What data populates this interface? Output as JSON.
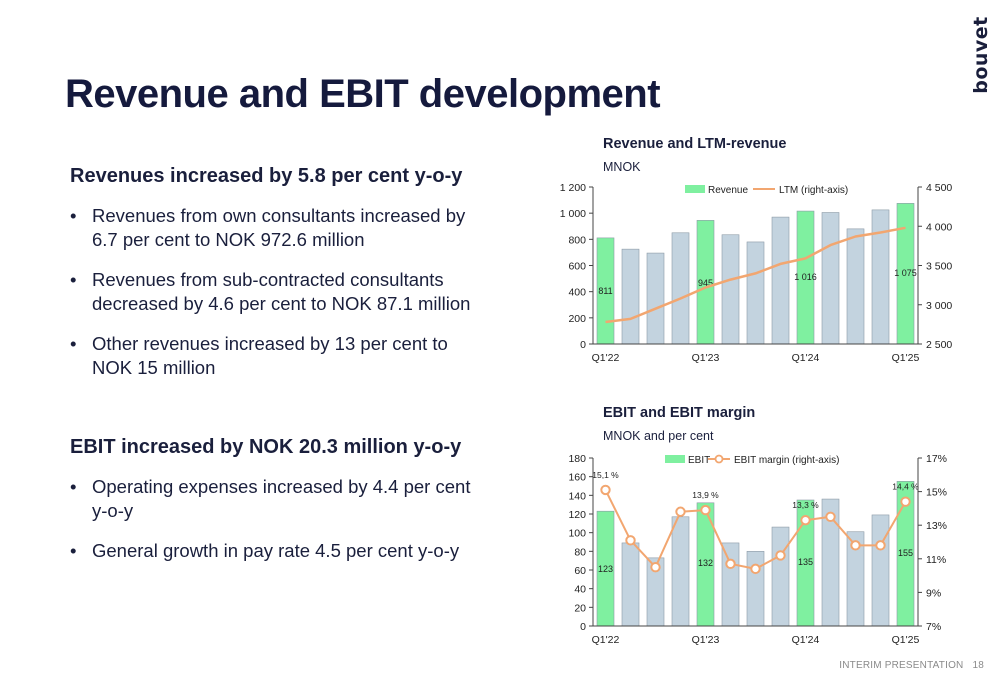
{
  "brand": {
    "logo_text": "bouvet"
  },
  "title": "Revenue and EBIT development",
  "revenue_section": {
    "heading": "Revenues increased by 5.8 per cent y-o-y",
    "bullets": [
      "Revenues from own consultants increased by 6.7 per cent to NOK 972.6 million",
      "Revenues from sub-contracted consultants decreased by 4.6 per cent to NOK 87.1 million",
      "Other revenues increased by 13 per cent to NOK 15 million"
    ]
  },
  "ebit_section": {
    "heading": "EBIT increased by NOK 20.3 million y-o-y",
    "bullets": [
      "Operating expenses increased by 4.4 per cent y-o-y",
      "General growth in pay rate 4.5 per cent y-o-y"
    ]
  },
  "footer": {
    "label": "INTERIM PRESENTATION",
    "page": "18"
  },
  "colors": {
    "highlight_bar": "#7ff0a0",
    "regular_bar": "#c3d3df",
    "line": "#f2a670",
    "text": "#1a1f3c"
  },
  "chart_data": [
    {
      "type": "bar",
      "title": "Revenue and LTM-revenue",
      "subtitle": "MNOK",
      "categories": [
        "Q1'22",
        "",
        "",
        "",
        "Q1'23",
        "",
        "",
        "",
        "Q1'24",
        "",
        "",
        "",
        "Q1'25"
      ],
      "highlight_indices": [
        0,
        4,
        8,
        12
      ],
      "legend_position": "top",
      "series": [
        {
          "name": "Revenue",
          "axis": "left",
          "values": [
            811,
            725,
            695,
            850,
            945,
            835,
            780,
            970,
            1016,
            1005,
            880,
            1025,
            1075
          ],
          "data_labels": [
            "811",
            "",
            "",
            "",
            "945",
            "",
            "",
            "",
            "1 016",
            "",
            "",
            "",
            "1 075"
          ]
        },
        {
          "name": "LTM (right-axis)",
          "axis": "right",
          "type": "line",
          "values": [
            2780,
            2820,
            2950,
            3080,
            3220,
            3320,
            3400,
            3520,
            3590,
            3760,
            3870,
            3920,
            3980
          ]
        }
      ],
      "ylim": [
        0,
        1200
      ],
      "y_ticks": [
        "0",
        "200",
        "400",
        "600",
        "800",
        "1 000",
        "1 200"
      ],
      "y2lim": [
        2500,
        4500
      ],
      "y2_ticks": [
        "2 500",
        "3 000",
        "3 500",
        "4 000",
        "4 500"
      ]
    },
    {
      "type": "bar",
      "title": "EBIT and EBIT margin",
      "subtitle": "MNOK and per cent",
      "categories": [
        "Q1'22",
        "",
        "",
        "",
        "Q1'23",
        "",
        "",
        "",
        "Q1'24",
        "",
        "",
        "",
        "Q1'25"
      ],
      "highlight_indices": [
        0,
        4,
        8,
        12
      ],
      "legend_position": "top",
      "series": [
        {
          "name": "EBIT",
          "axis": "left",
          "values": [
            123,
            89,
            73,
            117,
            132,
            89,
            80,
            106,
            135,
            136,
            101,
            119,
            155
          ],
          "data_labels": [
            "123",
            "",
            "",
            "",
            "132",
            "",
            "",
            "",
            "135",
            "",
            "",
            "",
            "155"
          ]
        },
        {
          "name": "EBIT margin (right-axis)",
          "axis": "right",
          "type": "line",
          "values": [
            15.1,
            12.1,
            10.5,
            13.8,
            13.9,
            10.7,
            10.4,
            11.2,
            13.3,
            13.5,
            11.8,
            11.8,
            14.4
          ],
          "data_labels": [
            "15,1 %",
            "",
            "",
            "",
            "13,9 %",
            "",
            "",
            "",
            "13,3 %",
            "",
            "",
            "",
            "14,4 %"
          ]
        }
      ],
      "ylim": [
        0,
        180
      ],
      "y_ticks": [
        "0",
        "20",
        "40",
        "60",
        "80",
        "100",
        "120",
        "140",
        "160",
        "180"
      ],
      "y2lim": [
        7,
        17
      ],
      "y2_ticks": [
        "7%",
        "9%",
        "11%",
        "13%",
        "15%",
        "17%"
      ]
    }
  ]
}
